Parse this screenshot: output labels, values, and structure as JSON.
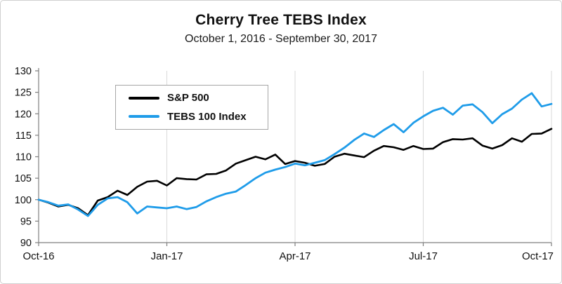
{
  "title": "Cherry Tree TEBS Index",
  "subtitle": "October 1, 2016 - September 30, 2017",
  "legend": {
    "items": [
      {
        "label": "S&P 500",
        "color": "#000000"
      },
      {
        "label": "TEBS 100 Index",
        "color": "#1f9ce9"
      }
    ],
    "position": "top-left-inside"
  },
  "chart_data": {
    "type": "line",
    "title": "Cherry Tree TEBS Index",
    "subtitle": "October 1, 2016 - September 30, 2017",
    "xlabel": "",
    "ylabel": "",
    "ylim": [
      90,
      130
    ],
    "y_ticks": [
      90,
      95,
      100,
      105,
      110,
      115,
      120,
      125,
      130
    ],
    "x_ticks": [
      {
        "label": "Oct-16",
        "pos": 0
      },
      {
        "label": "Jan-17",
        "pos": 0.25
      },
      {
        "label": "Apr-17",
        "pos": 0.5
      },
      {
        "label": "Jul-17",
        "pos": 0.75
      },
      {
        "label": "Oct-17",
        "pos": 1
      }
    ],
    "grid": "vertical-only",
    "legend_position": "top-left-inside",
    "x_unit": "weekly points, Oct 1 2016 through Sep 30 2017, both series indexed to 100",
    "series": [
      {
        "name": "S&P 500",
        "color": "#000000",
        "values": [
          100,
          99.3,
          98.4,
          98.8,
          98.0,
          96.4,
          99.8,
          100.6,
          102.1,
          101.1,
          103.0,
          104.2,
          104.4,
          103.3,
          105.0,
          104.8,
          104.7,
          105.9,
          106.0,
          106.8,
          108.4,
          109.2,
          110.0,
          109.4,
          110.5,
          108.3,
          109.0,
          108.6,
          107.9,
          108.3,
          110.0,
          110.7,
          110.3,
          109.9,
          111.4,
          112.5,
          112.2,
          111.6,
          112.5,
          111.8,
          111.9,
          113.4,
          114.1,
          114.0,
          114.3,
          112.6,
          111.9,
          112.7,
          114.3,
          113.5,
          115.3,
          115.4,
          116.5
        ]
      },
      {
        "name": "TEBS 100 Index",
        "color": "#1f9ce9",
        "values": [
          100,
          99.4,
          98.6,
          98.9,
          97.7,
          96.2,
          98.8,
          100.3,
          100.6,
          99.4,
          96.8,
          98.4,
          98.2,
          98.0,
          98.4,
          97.8,
          98.3,
          99.6,
          100.6,
          101.4,
          101.9,
          103.4,
          105.0,
          106.3,
          107.0,
          107.6,
          108.4,
          108.0,
          108.6,
          109.2,
          110.6,
          112.1,
          113.9,
          115.4,
          114.6,
          116.2,
          117.6,
          115.7,
          117.9,
          119.4,
          120.7,
          121.4,
          119.8,
          121.9,
          122.2,
          120.4,
          117.8,
          119.9,
          121.2,
          123.3,
          124.8,
          121.7,
          122.3
        ]
      }
    ]
  }
}
